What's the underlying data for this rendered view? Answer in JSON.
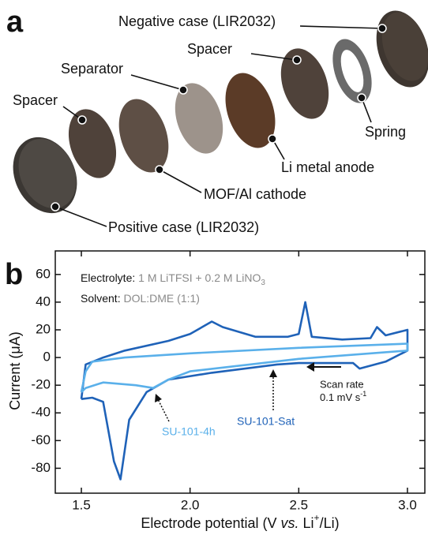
{
  "panel_a": {
    "panel_label": "a",
    "labels": [
      "Negative case (LIR2032)",
      "Spacer",
      "Separator",
      "Spacer",
      "Spring",
      "Li metal anode",
      "MOF/Al cathode",
      "Positive case (LIR2032)"
    ]
  },
  "chart_data": {
    "type": "line",
    "panel_label": "b",
    "x_label": {
      "before": "Electrode potential (V ",
      "italic": "vs.",
      "middle": " Li",
      "sup": "+",
      "after": "/Li)"
    },
    "y_label": "Current (μA)",
    "annotations": {
      "electrolyte_key": "Electrolyte:",
      "electrolyte_value": "1 M LiTFSI + 0.2 M LiNO",
      "electrolyte_sub": "3",
      "solvent_key": "Solvent:",
      "solvent_value": "DOL:DME (1:1)",
      "scan_rate_title": "Scan rate",
      "scan_rate_value": "0.1 mV s",
      "scan_rate_sup": "-1"
    },
    "xlim": [
      1.38,
      3.08
    ],
    "ylim": [
      -98,
      77
    ],
    "xticks": [
      {
        "value": 1.5,
        "label": "1.5"
      },
      {
        "value": 2.0,
        "label": "2.0"
      },
      {
        "value": 2.5,
        "label": "2.5"
      },
      {
        "value": 3.0,
        "label": "3.0"
      }
    ],
    "yticks": [
      60,
      40,
      20,
      0,
      -20,
      -40,
      -60,
      -80
    ],
    "series": [
      {
        "name": "SU-101-Sat",
        "color": "#1f62b8",
        "x": [
          1.5,
          1.52,
          1.6,
          1.7,
          1.9,
          2.0,
          2.1,
          2.15,
          2.3,
          2.45,
          2.5,
          2.53,
          2.56,
          2.7,
          2.83,
          2.86,
          2.9,
          3.0,
          3.0,
          2.9,
          2.78,
          2.75,
          2.5,
          2.4,
          2.3,
          2.1,
          1.9,
          1.8,
          1.72,
          1.68,
          1.65,
          1.6,
          1.55,
          1.5
        ],
        "values": [
          -30,
          -5,
          0,
          5,
          12,
          17,
          26,
          22,
          15,
          15,
          17,
          40,
          15,
          13,
          14,
          22,
          16,
          20,
          5,
          -3,
          -8,
          -4,
          -4,
          -5,
          -7,
          -11,
          -16,
          -25,
          -45,
          -88,
          -75,
          -32,
          -29,
          -30
        ]
      },
      {
        "name": "SU-101-4h",
        "color": "#5ab0ea",
        "x": [
          1.5,
          1.52,
          1.55,
          1.7,
          2.0,
          2.5,
          3.0,
          3.0,
          2.5,
          2.0,
          1.9,
          1.83,
          1.75,
          1.6,
          1.52,
          1.5
        ],
        "values": [
          -25,
          -10,
          -3,
          0,
          3,
          7,
          10,
          5,
          -1,
          -10,
          -16,
          -22,
          -20,
          -18,
          -22,
          -25
        ]
      }
    ]
  }
}
